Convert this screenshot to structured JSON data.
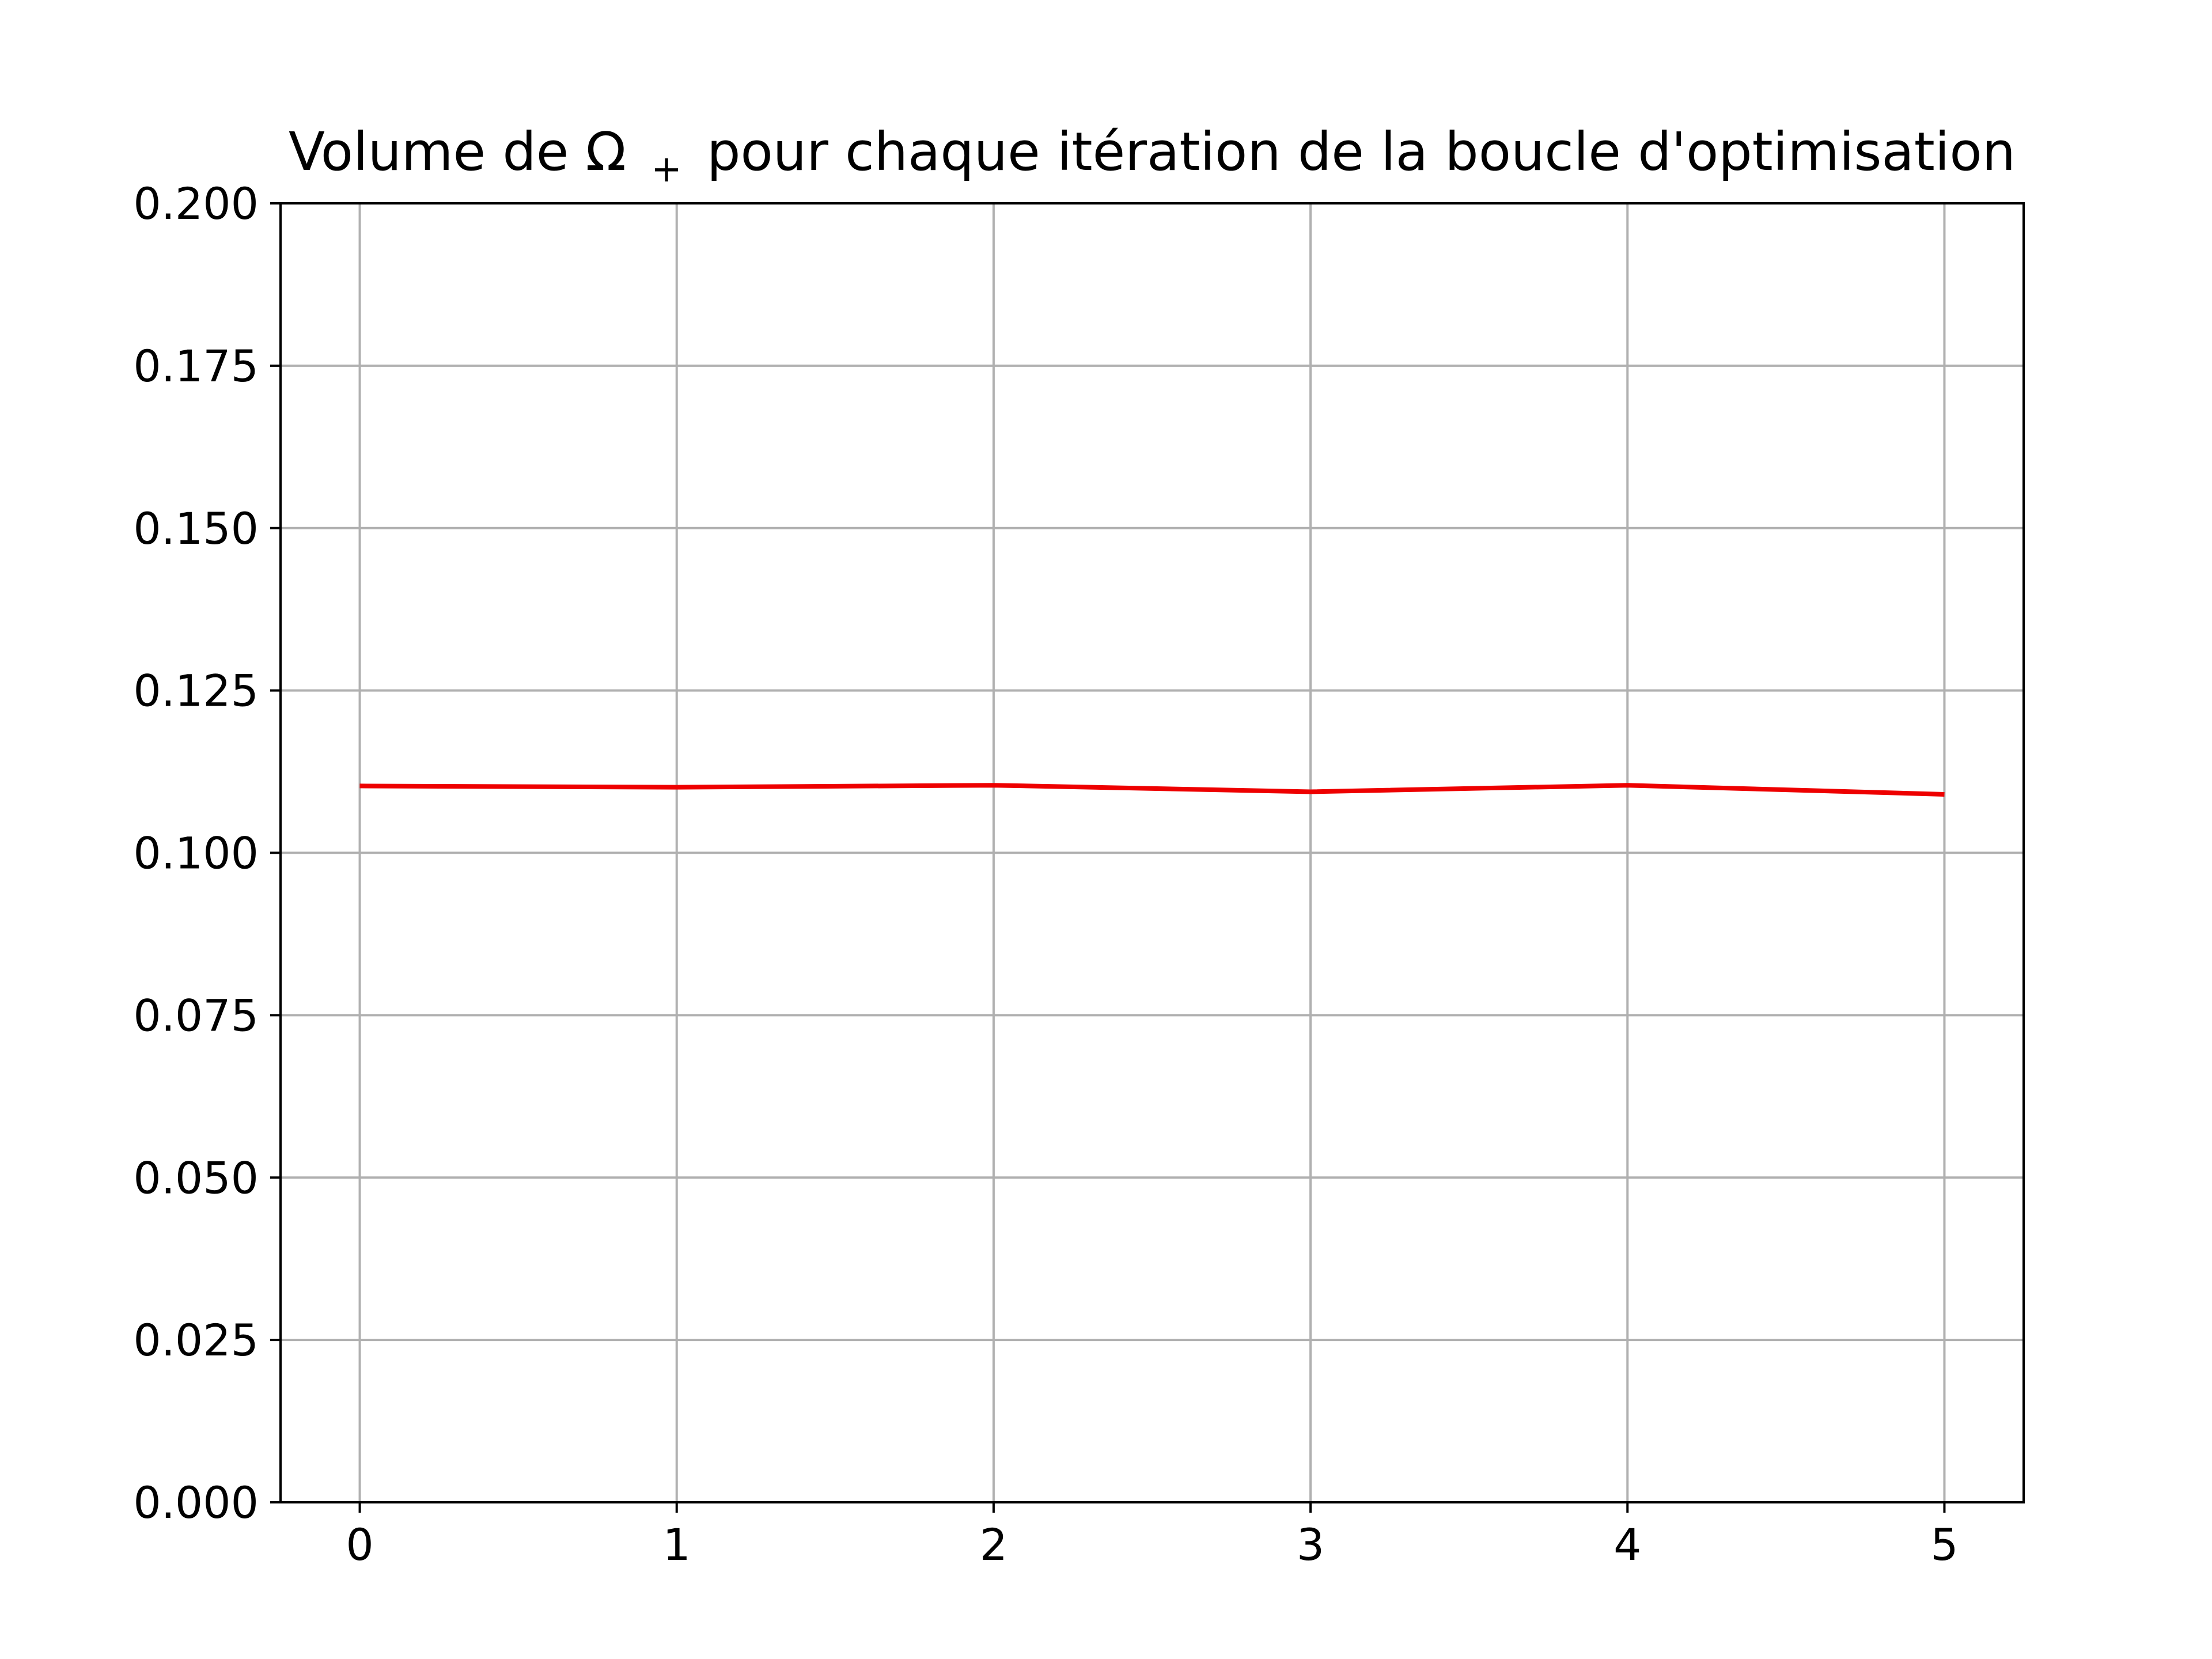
{
  "chart_data": {
    "type": "line",
    "title": "Volume de Ω₊ pour chaque itération de la boucle d'optimisation",
    "title_parts": {
      "before": "Volume de Ω",
      "subscript": "+",
      "after": " pour chaque itération de la boucle d'optimisation"
    },
    "xlabel": "",
    "ylabel": "",
    "xlim": [
      -0.25,
      5.25
    ],
    "ylim": [
      0,
      0.2
    ],
    "x_ticks": [
      0,
      1,
      2,
      3,
      4,
      5
    ],
    "x_tick_labels": [
      "0",
      "1",
      "2",
      "3",
      "4",
      "5"
    ],
    "y_ticks": [
      0,
      0.025,
      0.05,
      0.075,
      0.1,
      0.125,
      0.15,
      0.175,
      0.2
    ],
    "y_tick_labels": [
      "0.000",
      "0.025",
      "0.050",
      "0.075",
      "0.100",
      "0.125",
      "0.150",
      "0.175",
      "0.200"
    ],
    "grid": true,
    "series": [
      {
        "color": "#ee0000",
        "x": [
          0,
          1,
          2,
          3,
          4,
          5
        ],
        "y": [
          0.1103,
          0.1101,
          0.1104,
          0.1094,
          0.1104,
          0.109
        ]
      }
    ]
  }
}
